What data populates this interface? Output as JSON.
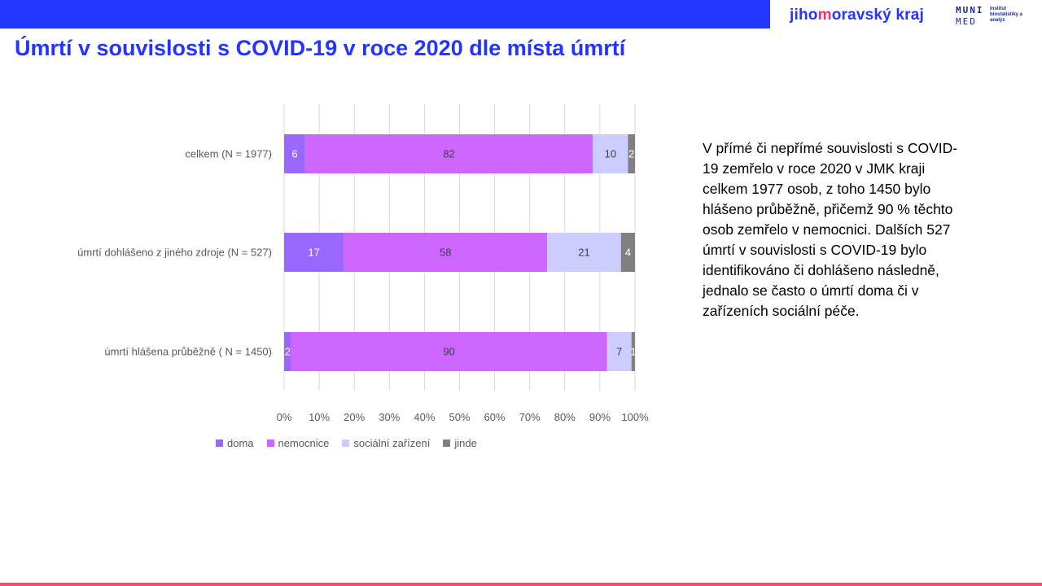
{
  "header": {
    "logo_jmk_part1": "jiho",
    "logo_jmk_accent": "m",
    "logo_jmk_part2": "oravský kraj",
    "logo_muni_line1": "MUNI",
    "logo_muni_line2": "MED",
    "logo_muni_institute": "Institut biostatistiky a analýz"
  },
  "title": "Úmrtí v souvislosti s COVID-19 v roce 2020 dle místa úmrtí",
  "side_text": "V přímé či nepřímé souvislosti s COVID-19 zemřelo v roce 2020 v JMK kraji celkem 1977 osob, z toho 1450 bylo hlášeno průběžně, přičemž 90 % těchto osob zemřelo v nemocnici. Dalších 527 úmrtí v souvislosti s COVID-19 bylo identifikováno či dohlášeno následně, jednalo se často o úmrtí doma či v zařízeních sociální péče.",
  "colors": {
    "brand_blue": "#2334ff",
    "brand_pink": "#f0506e",
    "doma": "#9966ff",
    "nemocnice": "#cc66ff",
    "socialni": "#ccccff",
    "jinde": "#808080"
  },
  "chart_data": {
    "type": "bar",
    "orientation": "horizontal",
    "stacked": "percent",
    "categories": [
      "celkem (N = 1977)",
      "úmrtí dohlášeno z jiného zdroje (N = 527)",
      "úmrtí hlášena průběžně ( N = 1450)"
    ],
    "series": [
      {
        "name": "doma",
        "values": [
          6,
          17,
          2
        ]
      },
      {
        "name": "nemocnice",
        "values": [
          82,
          58,
          90
        ]
      },
      {
        "name": "sociální zařízení",
        "values": [
          10,
          21,
          7
        ]
      },
      {
        "name": "jinde",
        "values": [
          2,
          4,
          1
        ]
      }
    ],
    "xlim": [
      0,
      100
    ],
    "x_ticks": [
      "0%",
      "10%",
      "20%",
      "30%",
      "40%",
      "50%",
      "60%",
      "70%",
      "80%",
      "90%",
      "100%"
    ],
    "grid": true,
    "legend_position": "bottom",
    "title": "",
    "xlabel": "",
    "ylabel": ""
  }
}
